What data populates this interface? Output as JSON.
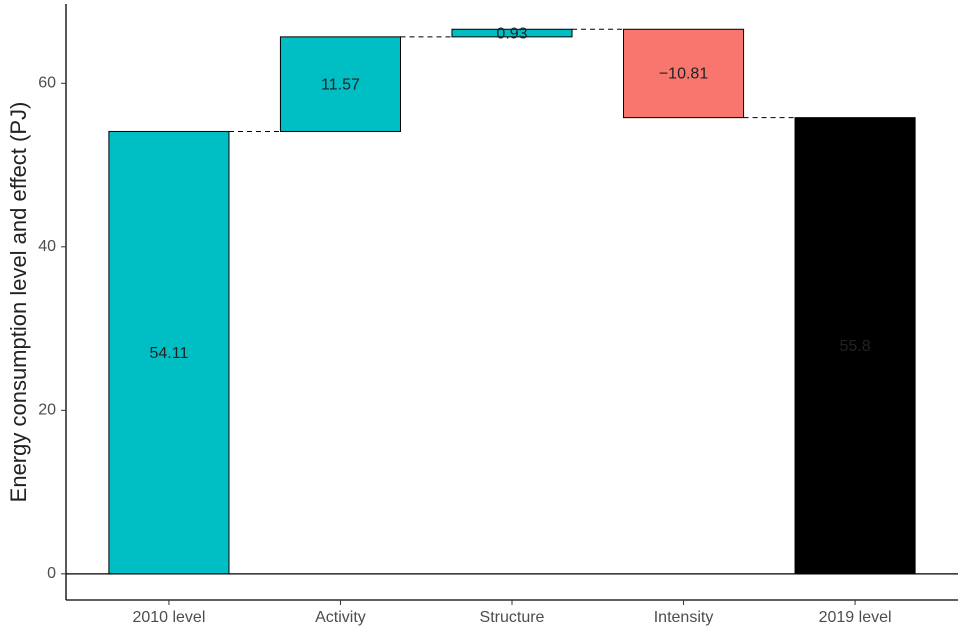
{
  "chart_data": {
    "type": "waterfall",
    "y_label": "Energy consumption level and effect (PJ)",
    "categories": [
      "2010 level",
      "Activity",
      "Structure",
      "Intensity",
      "2019 level"
    ],
    "values": [
      54.11,
      11.57,
      0.93,
      -10.81,
      55.8
    ],
    "value_labels": [
      "54.11",
      "11.57",
      "0.93",
      "−10.81",
      "55.8"
    ],
    "colors": [
      "#00BFC4",
      "#00BFC4",
      "#00BFC4",
      "#F8766D",
      "#000000"
    ],
    "label_colors": [
      "#000000",
      "#000000",
      "#000000",
      "#000000",
      "#ffffff"
    ],
    "ylim": [
      -3.2,
      69.7
    ],
    "yticks": [
      0,
      20,
      40,
      60
    ]
  }
}
